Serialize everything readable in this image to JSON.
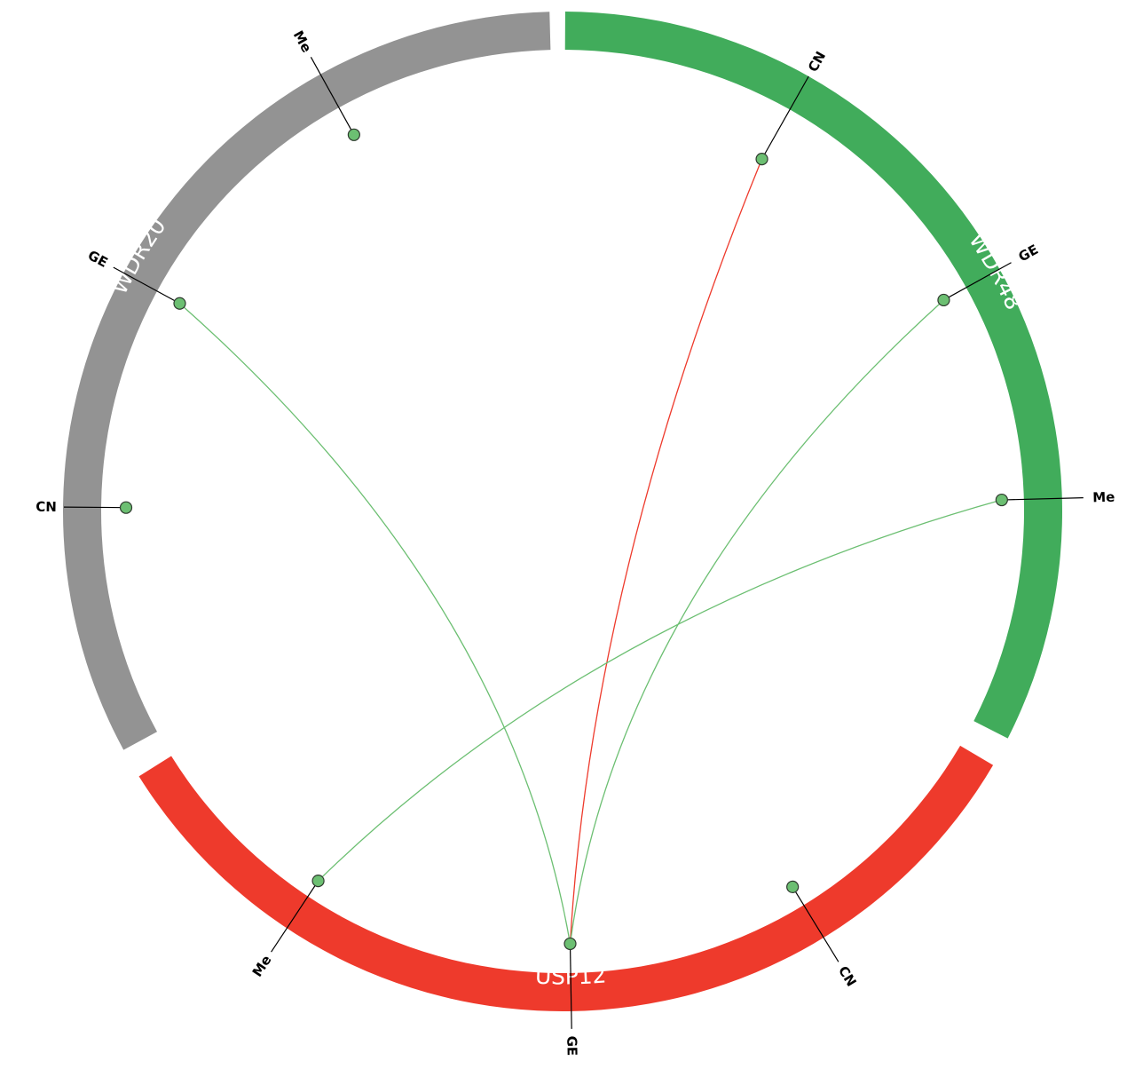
{
  "diagram": {
    "segments": [
      {
        "id": "WDR48",
        "label": "WDR48",
        "color": "#41ac5b",
        "nodes": [
          {
            "id": "WDR48-CN",
            "label": "CN"
          },
          {
            "id": "WDR48-GE",
            "label": "GE"
          },
          {
            "id": "WDR48-Me",
            "label": "Me"
          }
        ]
      },
      {
        "id": "USP12",
        "label": "USP12",
        "color": "#ee3a2c",
        "nodes": [
          {
            "id": "USP12-CN",
            "label": "CN"
          },
          {
            "id": "USP12-GE",
            "label": "GE"
          },
          {
            "id": "USP12-Me",
            "label": "Me"
          }
        ]
      },
      {
        "id": "WDR20",
        "label": "WDR20",
        "color": "#939393",
        "nodes": [
          {
            "id": "WDR20-CN",
            "label": "CN"
          },
          {
            "id": "WDR20-GE",
            "label": "GE"
          },
          {
            "id": "WDR20-Me",
            "label": "Me"
          }
        ]
      }
    ],
    "node_color": "#6cbf72",
    "links": [
      {
        "source": "WDR48-CN",
        "target": "USP12-GE",
        "color": "#ee3a2c"
      },
      {
        "source": "WDR48-GE",
        "target": "USP12-GE",
        "color": "#6cbf72"
      },
      {
        "source": "WDR48-Me",
        "target": "USP12-Me",
        "color": "#6cbf72"
      },
      {
        "source": "WDR20-GE",
        "target": "USP12-GE",
        "color": "#6cbf72"
      }
    ]
  }
}
